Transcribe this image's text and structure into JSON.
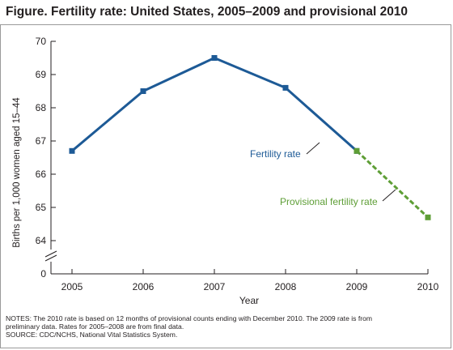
{
  "figure": {
    "title": "Figure. Fertility rate: United States, 2005–2009 and provisional 2010",
    "notes": [
      "NOTES: The 2010 rate is based on 12 months of provisional counts ending with December 2010. The 2009 rate is from",
      "preliminary data. Rates for 2005–2008 are from final data.",
      "SOURCE: CDC/NCHS, National Vital Statistics System."
    ]
  },
  "chart_data": {
    "type": "line",
    "title": "Figure. Fertility rate: United States, 2005–2009 and provisional 2010",
    "xlabel": "Year",
    "ylabel": "Births per 1,000 women aged 15–44",
    "x": [
      2005,
      2006,
      2007,
      2008,
      2009,
      2010
    ],
    "y_ticks": [
      0,
      64,
      65,
      66,
      67,
      68,
      69,
      70
    ],
    "y_axis_break": true,
    "ylim": [
      64,
      70
    ],
    "grid": false,
    "series": [
      {
        "name": "Fertility rate",
        "x": [
          2005,
          2006,
          2007,
          2008,
          2009
        ],
        "values": [
          66.7,
          68.5,
          69.5,
          68.6,
          66.7
        ],
        "color": "#1d5a96",
        "style": "solid",
        "marker": "square"
      },
      {
        "name": "Provisional fertility rate",
        "x": [
          2009,
          2010
        ],
        "values": [
          66.7,
          64.7
        ],
        "color": "#5e9e36",
        "style": "dashed",
        "marker": "square"
      }
    ],
    "annotations": [
      "Fertility rate",
      "Provisional fertility rate"
    ]
  }
}
